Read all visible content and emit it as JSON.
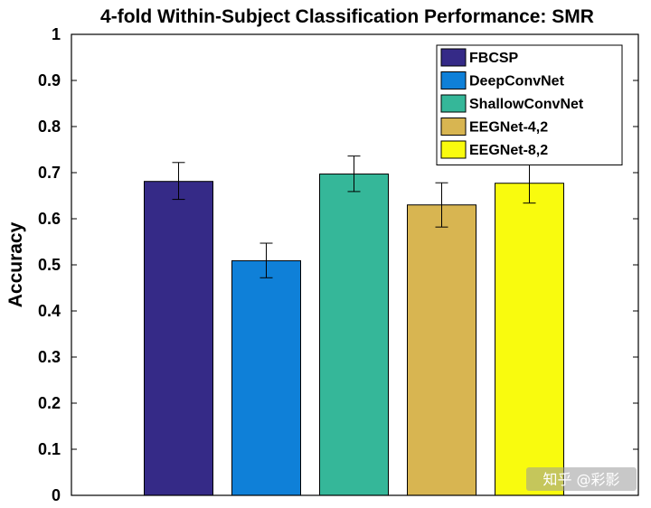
{
  "chart_data": {
    "type": "bar",
    "title": "4-fold Within-Subject Classification Performance: SMR",
    "xlabel": "",
    "ylabel": "Accuracy",
    "ylim": [
      0,
      1
    ],
    "yticks": [
      0,
      0.1,
      0.2,
      0.3,
      0.4,
      0.5,
      0.6,
      0.7,
      0.8,
      0.9,
      1
    ],
    "ytick_labels": [
      "0",
      "0.1",
      "0.2",
      "0.3",
      "0.4",
      "0.5",
      "0.6",
      "0.7",
      "0.8",
      "0.9",
      "1"
    ],
    "grid": false,
    "legend_position": "top-right",
    "series": [
      {
        "name": "FBCSP",
        "value": 0.681,
        "err_low": 0.642,
        "err_high": 0.722,
        "color": "#352a87"
      },
      {
        "name": "DeepConvNet",
        "value": 0.509,
        "err_low": 0.472,
        "err_high": 0.547,
        "color": "#0f80d8"
      },
      {
        "name": "ShallowConvNet",
        "value": 0.697,
        "err_low": 0.659,
        "err_high": 0.736,
        "color": "#35b799"
      },
      {
        "name": "EEGNet-4,2",
        "value": 0.63,
        "err_low": 0.582,
        "err_high": 0.678,
        "color": "#d8b551"
      },
      {
        "name": "EEGNet-8,2",
        "value": 0.677,
        "err_low": 0.634,
        "err_high": 0.72,
        "color": "#f9fb0e"
      }
    ]
  },
  "watermark": "知乎 @彩影"
}
